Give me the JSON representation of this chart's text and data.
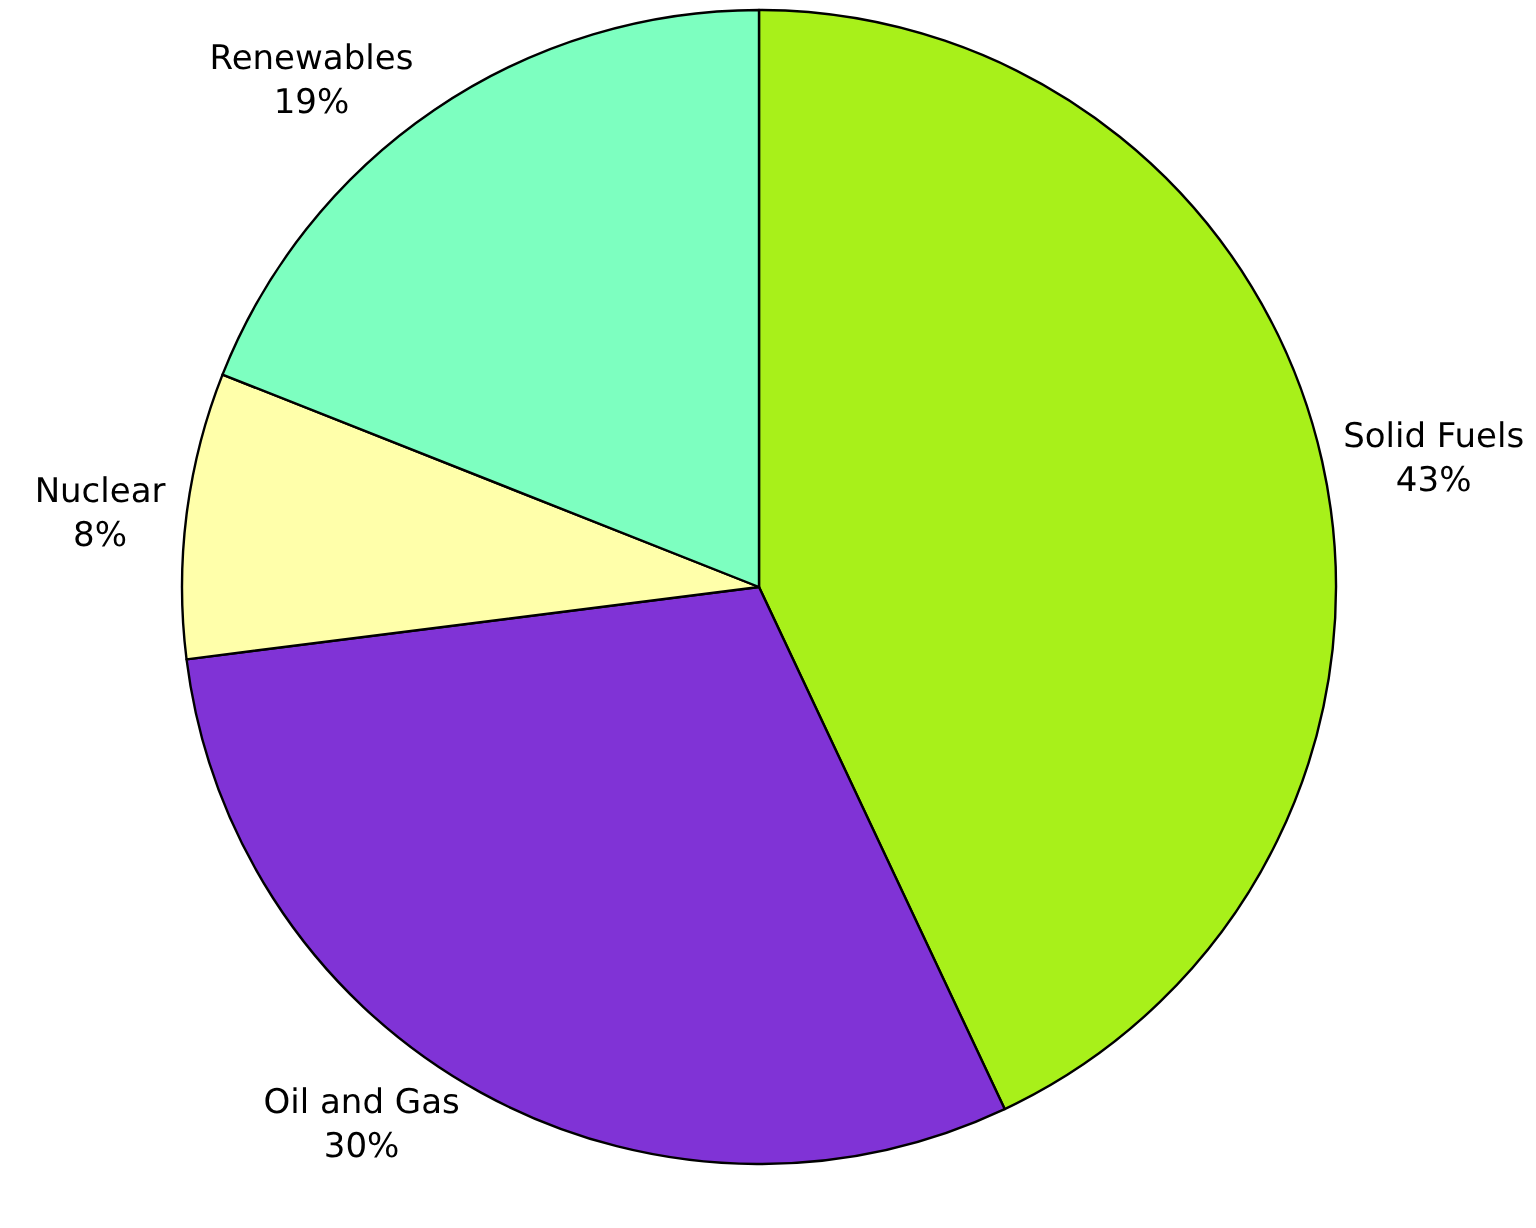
{
  "chart_data": {
    "type": "pie",
    "categories": [
      "Solid Fuels",
      "Oil and Gas",
      "Nuclear",
      "Renewables"
    ],
    "values": [
      43,
      30,
      8,
      19
    ],
    "value_labels": [
      "43%",
      "30%",
      "8%",
      "19%"
    ],
    "colors": [
      "#a8f01a",
      "#8033d6",
      "#ffffaa",
      "#7dffc0"
    ],
    "legend": false
  }
}
